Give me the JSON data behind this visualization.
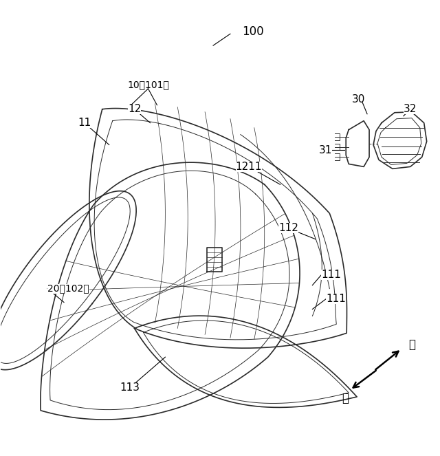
{
  "bg_color": "#ffffff",
  "line_color": "#2a2a2a",
  "fig_width": 6.4,
  "fig_height": 6.63,
  "dpi": 100,
  "mae_text": "前",
  "go_text": "後"
}
